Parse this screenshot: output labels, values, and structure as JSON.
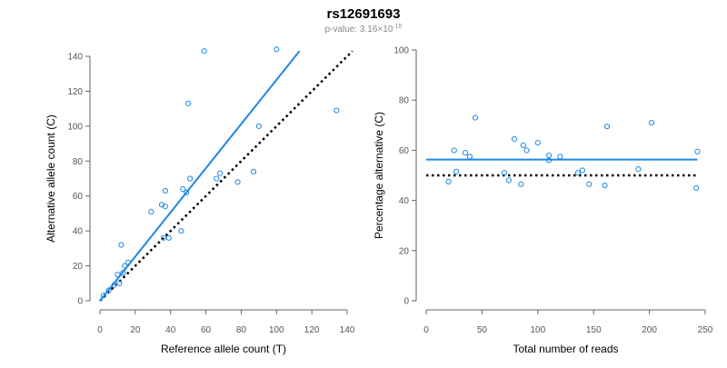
{
  "title": "rs12691693",
  "subtitle": {
    "prefix": "p-value: 3.16×10",
    "exponent": "-10"
  },
  "colors": {
    "series": "#1e88e5",
    "reference_line": "#000000",
    "axis": "#666666",
    "tick_label": "#555555",
    "subtitle": "#888888"
  },
  "chart_data": [
    {
      "type": "scatter",
      "xlabel": "Reference allele count (T)",
      "ylabel": "Alternative allele count (C)",
      "xlim": [
        0,
        140
      ],
      "ylim": [
        0,
        140
      ],
      "xticks": [
        0,
        20,
        40,
        60,
        80,
        100,
        120,
        140
      ],
      "yticks": [
        0,
        20,
        40,
        60,
        80,
        100,
        120,
        140
      ],
      "points": [
        {
          "x": 2,
          "y": 3
        },
        {
          "x": 5,
          "y": 6
        },
        {
          "x": 8,
          "y": 9
        },
        {
          "x": 10,
          "y": 15
        },
        {
          "x": 11,
          "y": 10
        },
        {
          "x": 12,
          "y": 32
        },
        {
          "x": 13,
          "y": 16
        },
        {
          "x": 14,
          "y": 20
        },
        {
          "x": 16,
          "y": 22
        },
        {
          "x": 29,
          "y": 51
        },
        {
          "x": 35,
          "y": 55
        },
        {
          "x": 36,
          "y": 36
        },
        {
          "x": 37,
          "y": 63
        },
        {
          "x": 37,
          "y": 54
        },
        {
          "x": 39,
          "y": 36
        },
        {
          "x": 46,
          "y": 40
        },
        {
          "x": 47,
          "y": 64
        },
        {
          "x": 49,
          "y": 62
        },
        {
          "x": 50,
          "y": 113
        },
        {
          "x": 51,
          "y": 70
        },
        {
          "x": 59,
          "y": 143
        },
        {
          "x": 66,
          "y": 70
        },
        {
          "x": 68,
          "y": 73
        },
        {
          "x": 78,
          "y": 68
        },
        {
          "x": 87,
          "y": 74
        },
        {
          "x": 90,
          "y": 100
        },
        {
          "x": 100,
          "y": 144
        },
        {
          "x": 134,
          "y": 109
        }
      ],
      "fit_line": {
        "from": [
          0,
          0
        ],
        "to": [
          113,
          143
        ]
      },
      "reference_line": {
        "from": [
          0,
          0
        ],
        "to": [
          143,
          143
        ],
        "style": "dotted"
      }
    },
    {
      "type": "scatter",
      "xlabel": "Total number of reads",
      "ylabel": "Percentage alternative (C)",
      "xlim": [
        0,
        250
      ],
      "ylim": [
        0,
        100
      ],
      "xticks": [
        0,
        50,
        100,
        150,
        200,
        250
      ],
      "yticks": [
        0,
        20,
        40,
        60,
        80,
        100
      ],
      "points": [
        {
          "x": 20,
          "y": 47.5
        },
        {
          "x": 25,
          "y": 60
        },
        {
          "x": 27,
          "y": 51.5
        },
        {
          "x": 35,
          "y": 59
        },
        {
          "x": 39,
          "y": 57.5
        },
        {
          "x": 44,
          "y": 73
        },
        {
          "x": 70,
          "y": 51
        },
        {
          "x": 74,
          "y": 48
        },
        {
          "x": 79,
          "y": 64.5
        },
        {
          "x": 85,
          "y": 46.5
        },
        {
          "x": 87,
          "y": 62
        },
        {
          "x": 90,
          "y": 60
        },
        {
          "x": 100,
          "y": 63
        },
        {
          "x": 110,
          "y": 56
        },
        {
          "x": 110,
          "y": 58
        },
        {
          "x": 120,
          "y": 57.5
        },
        {
          "x": 136,
          "y": 51
        },
        {
          "x": 140,
          "y": 52
        },
        {
          "x": 146,
          "y": 46.5
        },
        {
          "x": 160,
          "y": 46
        },
        {
          "x": 162,
          "y": 69.5
        },
        {
          "x": 190,
          "y": 52.5
        },
        {
          "x": 202,
          "y": 71
        },
        {
          "x": 242,
          "y": 45
        },
        {
          "x": 243,
          "y": 59.5
        }
      ],
      "fit_line": {
        "from": [
          0,
          56.3
        ],
        "to": [
          243,
          56.3
        ]
      },
      "reference_line": {
        "from": [
          0,
          50
        ],
        "to": [
          243,
          50
        ],
        "style": "dotted"
      }
    }
  ]
}
